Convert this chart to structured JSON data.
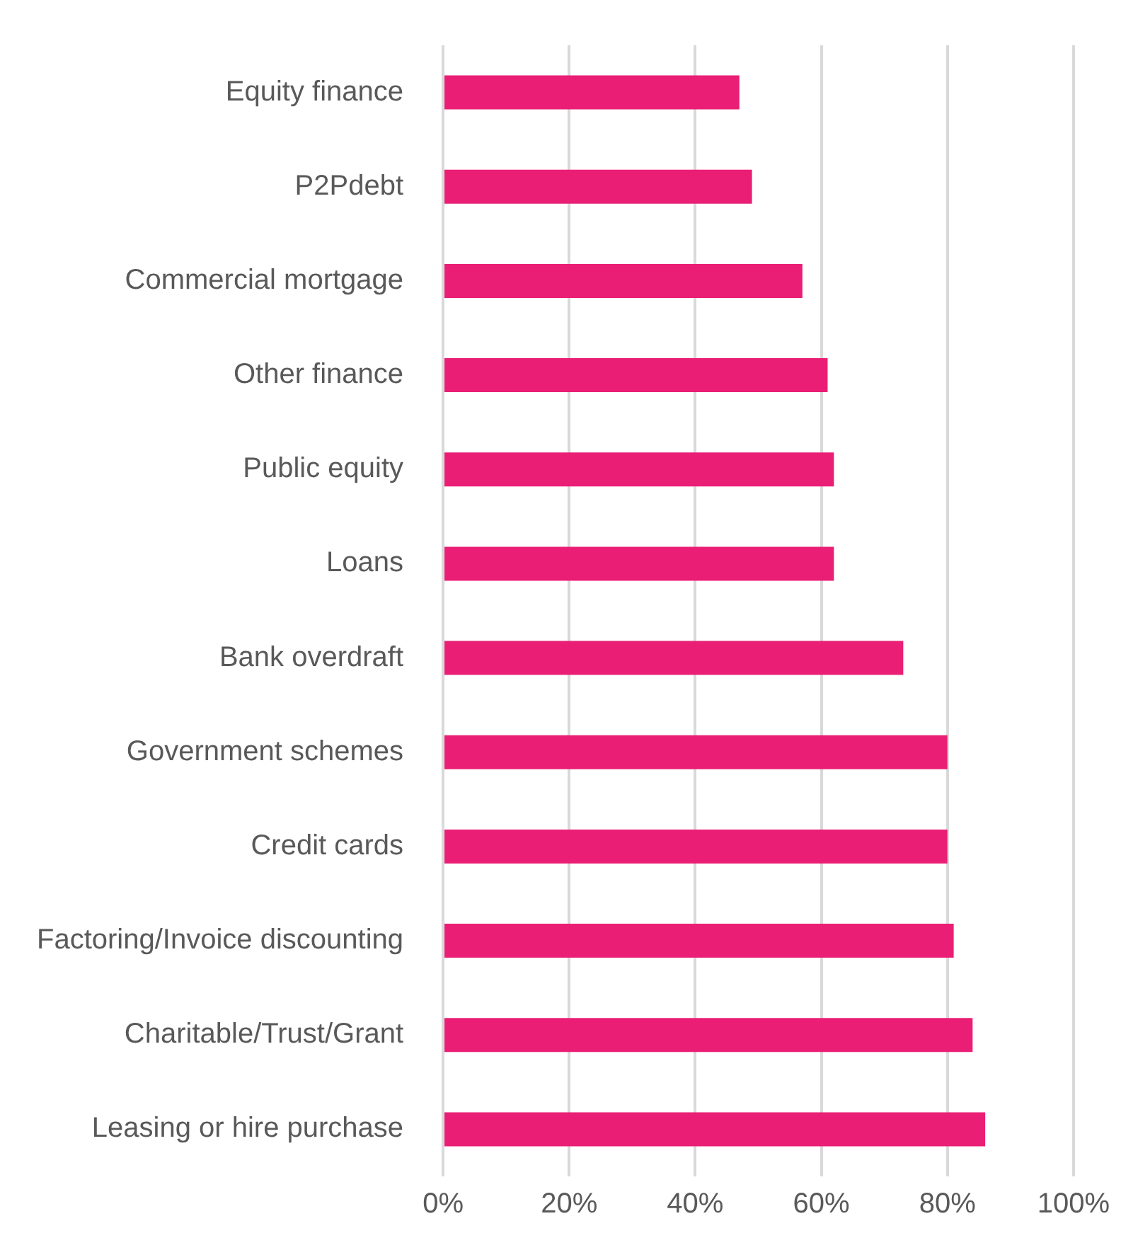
{
  "chart_data": {
    "type": "bar",
    "orientation": "horizontal",
    "categories": [
      "Equity finance",
      "P2Pdebt",
      "Commercial mortgage",
      "Other finance",
      "Public equity",
      "Loans",
      "Bank overdraft",
      "Government schemes",
      "Credit cards",
      "Factoring/Invoice discounting",
      "Charitable/Trust/Grant",
      "Leasing or hire purchase"
    ],
    "values": [
      47,
      49,
      57,
      61,
      62,
      62,
      73,
      80,
      80,
      81,
      84,
      86
    ],
    "color": "#e91e74",
    "xlim": [
      0,
      100
    ],
    "xticks": [
      {
        "value": 0,
        "label": "0%"
      },
      {
        "value": 20,
        "label": "20%"
      },
      {
        "value": 40,
        "label": "40%"
      },
      {
        "value": 60,
        "label": "60%"
      },
      {
        "value": 80,
        "label": "80%"
      },
      {
        "value": 100,
        "label": "100%"
      }
    ],
    "grid": "x",
    "legend": false
  }
}
